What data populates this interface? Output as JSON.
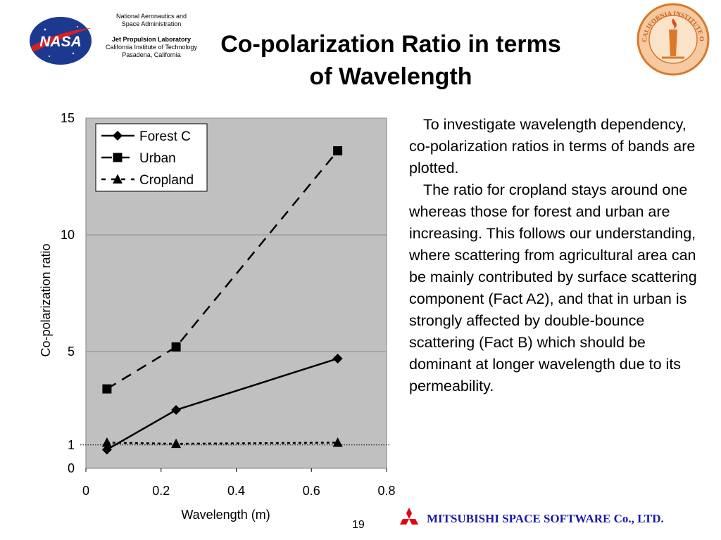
{
  "header": {
    "org_line1": "National Aeronautics and",
    "org_line2": "Space Administration",
    "lab_name": "Jet Propulsion Laboratory",
    "institute": "California Institute of Technology",
    "location": "Pasadena, California",
    "nasa_logo_text": "NASA",
    "nasa_logo_icon": "nasa-meatball-logo-icon",
    "caltech_seal_icon": "caltech-seal-icon",
    "caltech_seal_text": "CALIFORNIA INSTITUTE OF TECHNOLOGY"
  },
  "slide": {
    "title_line1": "Co-polarization Ratio in terms",
    "title_line2": "of Wavelength",
    "description_p1": "To investigate wavelength dependency, co-polarization ratios in terms of bands are plotted.",
    "description_p2": "The ratio for cropland stays around one whereas those for forest and urban are increasing. This follows our understanding, where scattering from agricultural area can be mainly contributed by surface scattering component (Fact A2), and that in urban is strongly affected by double-bounce scattering (Fact B) which should be dominant at longer wavelength due to its permeability.",
    "page_number": "19"
  },
  "footer": {
    "company": "MITSUBISHI SPACE SOFTWARE Co., LTD.",
    "logo_icon": "mitsubishi-three-diamonds-icon",
    "logo_color": "#e60012",
    "company_color": "#1a1aa8"
  },
  "chart_data": {
    "type": "line",
    "title": "",
    "xlabel": "Wavelength (m)",
    "ylabel": "Co-polarization ratio",
    "xlim": [
      0,
      0.8
    ],
    "ylim": [
      0,
      15
    ],
    "x_ticks": [
      0,
      0.2,
      0.4,
      0.6,
      0.8
    ],
    "x_tick_labels": [
      "0",
      "0.2",
      "0.4",
      "0.6",
      "0.8"
    ],
    "y_ticks": [
      0,
      1,
      5,
      10,
      15
    ],
    "y_tick_labels": [
      "0",
      "1",
      "5",
      "10",
      "15"
    ],
    "grid": "horizontal",
    "reference_line": {
      "y": 1,
      "style": "dotted"
    },
    "plot_background": "#c0c0c0",
    "legend_position": "top-left",
    "series": [
      {
        "name": "Forest C",
        "marker": "diamond",
        "line": "solid",
        "x": [
          0.056,
          0.24,
          0.67
        ],
        "y": [
          0.8,
          2.5,
          4.7
        ]
      },
      {
        "name": "Urban",
        "marker": "square",
        "line": "dashed",
        "x": [
          0.056,
          0.24,
          0.67
        ],
        "y": [
          3.4,
          5.2,
          13.6
        ]
      },
      {
        "name": "Cropland",
        "marker": "triangle",
        "line": "dotted",
        "x": [
          0.056,
          0.24,
          0.67
        ],
        "y": [
          1.1,
          1.05,
          1.1
        ]
      }
    ]
  }
}
